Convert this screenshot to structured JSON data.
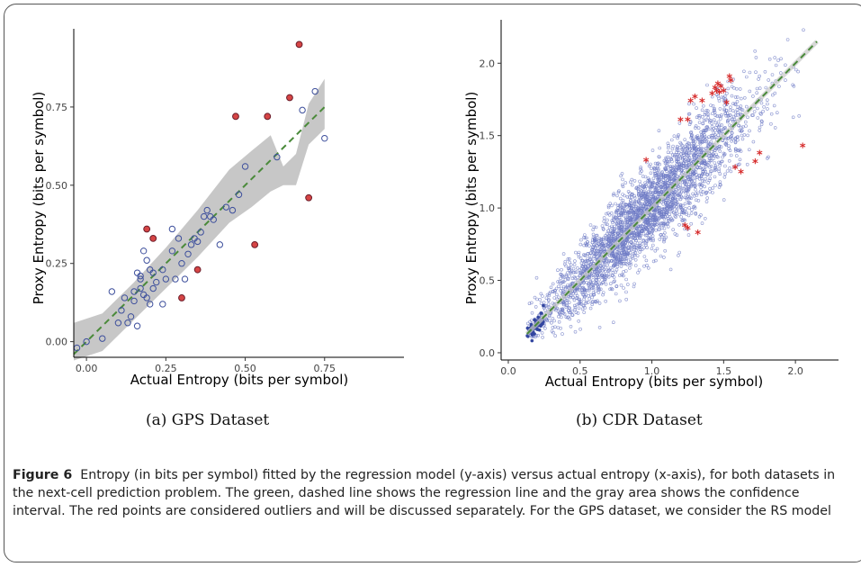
{
  "figure": {
    "caption_label": "Figure 6",
    "caption_text": "Entropy (in bits per symbol) fitted by the regression model (y-axis) versus actual entropy (x-axis), for both datasets in the next-cell prediction problem. The green, dashed line shows the regression line and the gray area shows the confidence interval. The red points are considered outliers and will be discussed separately. For the GPS dataset, we consider the RS model",
    "subcaption_a": "(a)  GPS Dataset",
    "subcaption_b": "(b)  CDR Dataset"
  },
  "chart_data": [
    {
      "type": "scatter",
      "title": "",
      "xlabel": "Actual Entropy (bits per symbol)",
      "ylabel": "Proxy Entropy (bits per symbol)",
      "xlim": [
        -0.04,
        1.0
      ],
      "ylim": [
        -0.05,
        1.0
      ],
      "xticks": [
        "0.00",
        "0.25",
        "0.50",
        "0.75"
      ],
      "xtick_values": [
        0.0,
        0.25,
        0.5,
        0.75
      ],
      "yticks": [
        "0.00",
        "0.25",
        "0.50",
        "0.75"
      ],
      "ytick_values": [
        0.0,
        0.25,
        0.5,
        0.75
      ],
      "regression_line": {
        "x": [
          -0.04,
          0.75
        ],
        "y": [
          -0.04,
          0.75
        ]
      },
      "confidence_band": {
        "x": [
          -0.04,
          0.05,
          0.15,
          0.25,
          0.35,
          0.45,
          0.52,
          0.58,
          0.62,
          0.66,
          0.7,
          0.75
        ],
        "upper": [
          0.06,
          0.09,
          0.19,
          0.3,
          0.42,
          0.55,
          0.61,
          0.66,
          0.56,
          0.6,
          0.76,
          0.84
        ],
        "lower": [
          -0.06,
          -0.03,
          0.07,
          0.17,
          0.27,
          0.38,
          0.43,
          0.48,
          0.5,
          0.5,
          0.63,
          0.68
        ]
      },
      "series": [
        {
          "name": "",
          "color": "#3d4f9c",
          "marker": "open-circle",
          "x": [
            0.0,
            -0.03,
            0.05,
            0.08,
            0.1,
            0.11,
            0.12,
            0.14,
            0.15,
            0.16,
            0.17,
            0.16,
            0.18,
            0.18,
            0.17,
            0.19,
            0.2,
            0.2,
            0.21,
            0.19,
            0.22,
            0.24,
            0.25,
            0.27,
            0.27,
            0.28,
            0.29,
            0.31,
            0.3,
            0.32,
            0.33,
            0.34,
            0.35,
            0.36,
            0.37,
            0.38,
            0.39,
            0.4,
            0.42,
            0.44,
            0.46,
            0.48,
            0.5,
            0.6,
            0.68,
            0.72,
            0.75,
            0.17,
            0.15,
            0.21,
            0.24,
            0.13
          ],
          "y": [
            0.0,
            -0.02,
            0.01,
            0.16,
            0.06,
            0.1,
            0.14,
            0.08,
            0.16,
            0.22,
            0.2,
            0.05,
            0.15,
            0.29,
            0.21,
            0.14,
            0.12,
            0.23,
            0.22,
            0.26,
            0.19,
            0.12,
            0.2,
            0.36,
            0.29,
            0.2,
            0.33,
            0.2,
            0.25,
            0.28,
            0.31,
            0.33,
            0.32,
            0.35,
            0.4,
            0.42,
            0.4,
            0.39,
            0.31,
            0.43,
            0.42,
            0.47,
            0.56,
            0.59,
            0.74,
            0.8,
            0.65,
            0.17,
            0.13,
            0.17,
            0.23,
            0.06
          ]
        },
        {
          "name": "",
          "color": "#d64545",
          "marker": "filled-circle-outlier",
          "x": [
            0.67,
            0.64,
            0.47,
            0.57,
            0.7,
            0.53,
            0.19,
            0.21,
            0.35,
            0.3
          ],
          "y": [
            0.95,
            0.78,
            0.72,
            0.72,
            0.46,
            0.31,
            0.36,
            0.33,
            0.23,
            0.14
          ]
        }
      ]
    },
    {
      "type": "scatter",
      "title": "",
      "xlabel": "Actual Entropy (bits per symbol)",
      "ylabel": "Proxy Entropy (bits per symbol)",
      "xlim": [
        -0.05,
        2.3
      ],
      "ylim": [
        -0.05,
        2.3
      ],
      "xticks": [
        "0.0",
        "0.5",
        "1.0",
        "1.5",
        "2.0"
      ],
      "xtick_values": [
        0.0,
        0.5,
        1.0,
        1.5,
        2.0
      ],
      "yticks": [
        "0.0",
        "0.5",
        "1.0",
        "1.5",
        "2.0"
      ],
      "ytick_values": [
        0.0,
        0.5,
        1.0,
        1.5,
        2.0
      ],
      "regression_line": {
        "x": [
          0.13,
          2.15
        ],
        "y": [
          0.13,
          2.15
        ]
      },
      "point_cloud": {
        "description_count": 3000,
        "color": "#6f7cc6",
        "marker": "small-open-circle",
        "x_range": [
          0.13,
          2.17
        ],
        "trend_slope": 1.0,
        "spread": 0.15
      },
      "series": [
        {
          "name": "",
          "color": "#d62b2b",
          "marker": "asterisk-outlier",
          "x": [
            0.96,
            1.23,
            1.25,
            1.27,
            1.3,
            1.32,
            1.44,
            1.46,
            1.48,
            1.5,
            1.52,
            1.55,
            1.54,
            1.58,
            1.62,
            1.72,
            1.75,
            2.05,
            1.2,
            1.25,
            1.35,
            1.47,
            1.45,
            1.42
          ],
          "y": [
            1.32,
            0.87,
            0.85,
            1.73,
            1.76,
            0.82,
            1.82,
            1.85,
            1.83,
            1.8,
            1.72,
            1.87,
            1.9,
            1.27,
            1.24,
            1.31,
            1.37,
            1.42,
            1.6,
            1.6,
            1.73,
            1.79,
            1.8,
            1.78
          ]
        }
      ]
    }
  ]
}
